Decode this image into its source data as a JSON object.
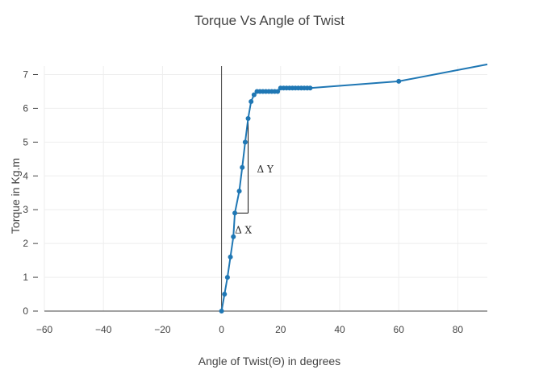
{
  "chart_data": {
    "type": "line",
    "title": "Torque Vs Angle of Twist",
    "xlabel": "Angle of Twist(Θ) in degrees",
    "ylabel": "Torque in Kg.m",
    "xlim": [
      -60,
      90
    ],
    "ylim": [
      0,
      7.25
    ],
    "xticks": [
      -60,
      -40,
      -20,
      0,
      20,
      40,
      60,
      80
    ],
    "yticks": [
      0,
      1,
      2,
      3,
      4,
      5,
      6,
      7
    ],
    "xtick_labels": [
      "−60",
      "−40",
      "−20",
      "0",
      "20",
      "40",
      "60",
      "80"
    ],
    "ytick_labels": [
      "0",
      "1",
      "2",
      "3",
      "4",
      "5",
      "6",
      "7"
    ],
    "grid": true,
    "series": [
      {
        "color": "#1f77b4",
        "x": [
          0,
          1,
          2,
          3,
          4,
          4.5,
          6,
          7,
          8,
          9,
          10,
          11,
          12,
          13,
          14,
          15,
          16,
          17,
          18,
          19,
          20,
          21,
          22,
          23,
          24,
          25,
          26,
          27,
          28,
          29,
          30,
          60,
          90
        ],
        "y": [
          0,
          0.5,
          1.0,
          1.6,
          2.2,
          2.9,
          3.55,
          4.25,
          5.0,
          5.7,
          6.2,
          6.4,
          6.5,
          6.5,
          6.5,
          6.5,
          6.5,
          6.5,
          6.5,
          6.5,
          6.6,
          6.6,
          6.6,
          6.6,
          6.6,
          6.6,
          6.6,
          6.6,
          6.6,
          6.6,
          6.6,
          6.8,
          7.3
        ],
        "markers_count": 32
      }
    ],
    "annotations": [
      {
        "text": "Δ X",
        "x": 4.5,
        "y": 2.3
      },
      {
        "text": "Δ Y",
        "x": 12,
        "y": 4.1
      }
    ],
    "guide_triangle": {
      "x_start": 4.5,
      "x_end": 9,
      "y_bottom": 2.9,
      "y_top": 5.7
    }
  }
}
